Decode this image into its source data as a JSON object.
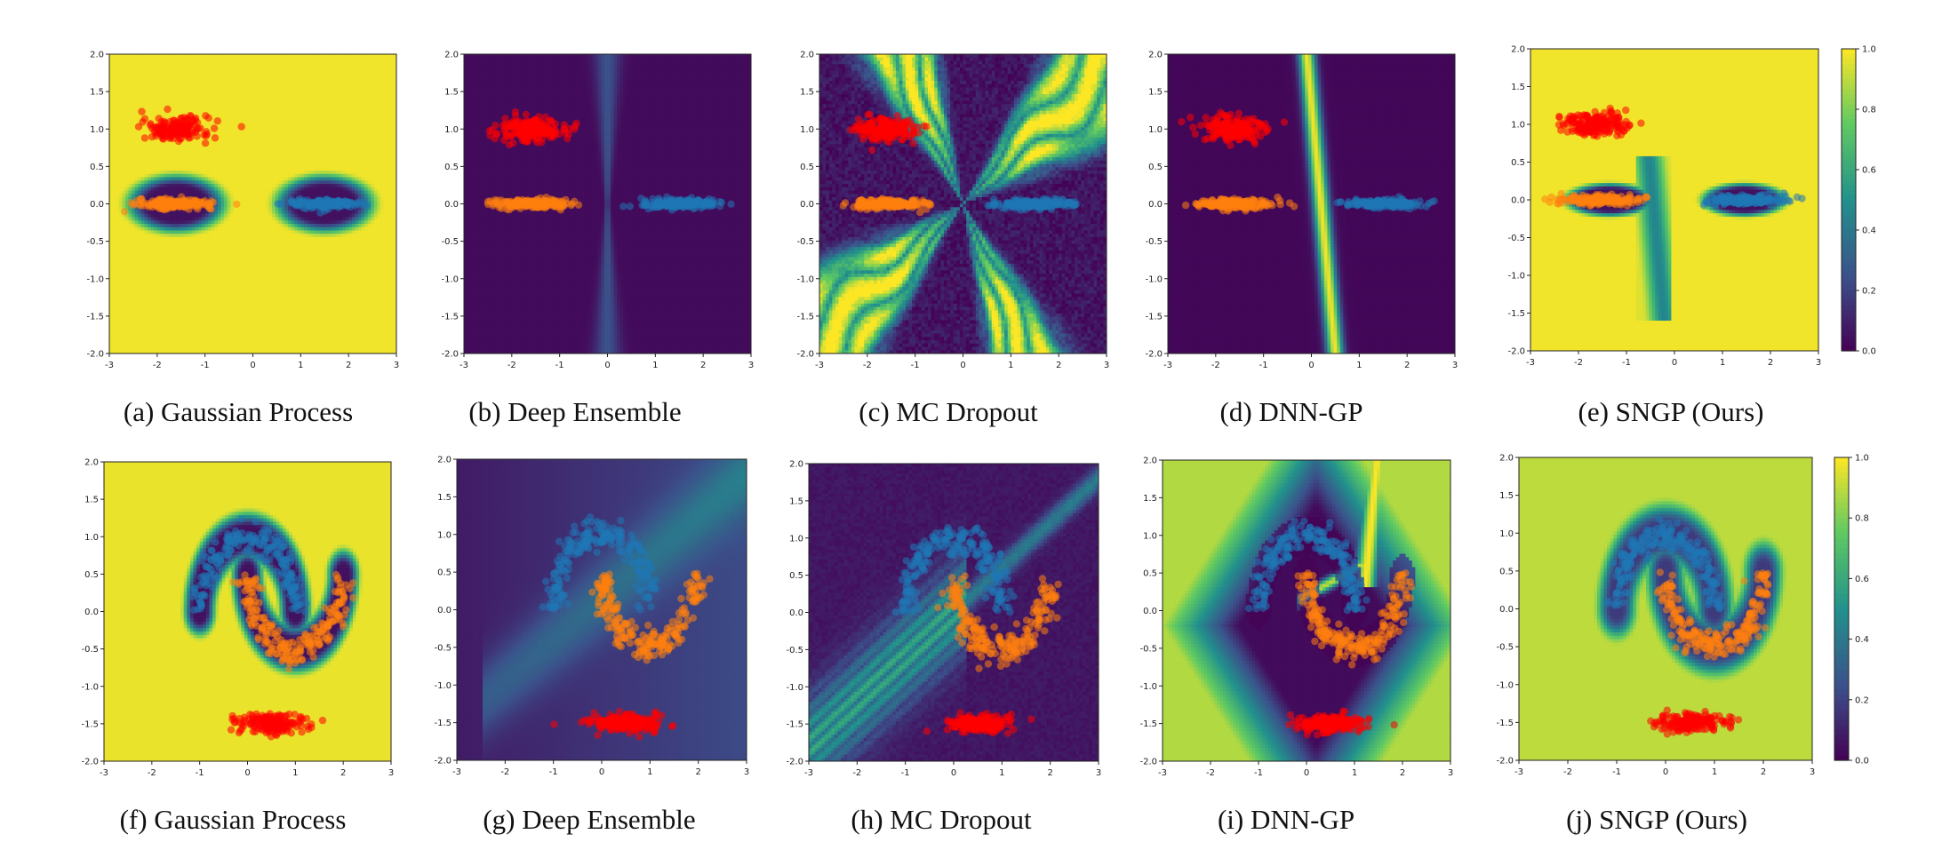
{
  "figure": {
    "colorbar_ticks": [
      "0.0",
      "0.2",
      "0.4",
      "0.6",
      "0.8",
      "1.0"
    ],
    "colormap": "viridis",
    "colors": {
      "high_uncertainty": "#e6e419",
      "low_uncertainty": "#440154",
      "class_orange": "#ff7f0e",
      "class_blue": "#1f77b4",
      "ood_red": "#ff0000"
    }
  },
  "chart_data": [
    {
      "id": "a",
      "type": "heatmap",
      "caption": "(a) Gaussian Process",
      "dataset": "gaussian-clusters",
      "method": "gp",
      "xlim": [
        -3,
        3
      ],
      "ylim": [
        -2,
        2
      ],
      "xticks": [
        "-3",
        "-2",
        "-1",
        "0",
        "1",
        "2",
        "3"
      ],
      "yticks": [
        "2.0",
        "1.5",
        "1.0",
        "0.5",
        "0.0",
        "-0.5",
        "-1.0",
        "-1.5",
        "-2.0"
      ],
      "clusters": [
        {
          "color": "ood_red",
          "cx": -1.6,
          "cy": 1.0,
          "sx": 0.35,
          "sy": 0.08
        },
        {
          "color": "class_orange",
          "cx": -1.6,
          "cy": 0.0,
          "sx": 0.4,
          "sy": 0.03
        },
        {
          "color": "class_blue",
          "cx": 1.5,
          "cy": 0.0,
          "sx": 0.4,
          "sy": 0.03
        }
      ]
    },
    {
      "id": "b",
      "type": "heatmap",
      "caption": "(b) Deep Ensemble",
      "dataset": "gaussian-clusters",
      "method": "ensemble",
      "xlim": [
        -3,
        3
      ],
      "ylim": [
        -2,
        2
      ],
      "xticks": [
        "-3",
        "-2",
        "-1",
        "0",
        "1",
        "2",
        "3"
      ],
      "yticks": [
        "2.0",
        "1.5",
        "1.0",
        "0.5",
        "0.0",
        "-0.5",
        "-1.0",
        "-1.5",
        "-2.0"
      ],
      "clusters": [
        {
          "color": "ood_red",
          "cx": -1.6,
          "cy": 1.0,
          "sx": 0.35,
          "sy": 0.08
        },
        {
          "color": "class_orange",
          "cx": -1.6,
          "cy": 0.0,
          "sx": 0.4,
          "sy": 0.03
        },
        {
          "color": "class_blue",
          "cx": 1.5,
          "cy": 0.0,
          "sx": 0.4,
          "sy": 0.03
        }
      ]
    },
    {
      "id": "c",
      "type": "heatmap",
      "caption": "(c) MC Dropout",
      "dataset": "gaussian-clusters",
      "method": "dropout",
      "xlim": [
        -3,
        3
      ],
      "ylim": [
        -2,
        2
      ],
      "xticks": [
        "-3",
        "-2",
        "-1",
        "0",
        "1",
        "2",
        "3"
      ],
      "yticks": [
        "2.0",
        "1.5",
        "1.0",
        "0.5",
        "0.0",
        "-0.5",
        "-1.0",
        "-1.5",
        "-2.0"
      ],
      "clusters": [
        {
          "color": "ood_red",
          "cx": -1.6,
          "cy": 1.0,
          "sx": 0.35,
          "sy": 0.08
        },
        {
          "color": "class_orange",
          "cx": -1.6,
          "cy": 0.0,
          "sx": 0.4,
          "sy": 0.03
        },
        {
          "color": "class_blue",
          "cx": 1.5,
          "cy": 0.0,
          "sx": 0.4,
          "sy": 0.03
        }
      ]
    },
    {
      "id": "d",
      "type": "heatmap",
      "caption": "(d) DNN-GP",
      "dataset": "gaussian-clusters",
      "method": "dnngp",
      "xlim": [
        -3,
        3
      ],
      "ylim": [
        -2,
        2
      ],
      "xticks": [
        "-3",
        "-2",
        "-1",
        "0",
        "1",
        "2",
        "3"
      ],
      "yticks": [
        "2.0",
        "1.5",
        "1.0",
        "0.5",
        "0.0",
        "-0.5",
        "-1.0",
        "-1.5",
        "-2.0"
      ],
      "clusters": [
        {
          "color": "ood_red",
          "cx": -1.6,
          "cy": 1.0,
          "sx": 0.35,
          "sy": 0.08
        },
        {
          "color": "class_orange",
          "cx": -1.6,
          "cy": 0.0,
          "sx": 0.4,
          "sy": 0.03
        },
        {
          "color": "class_blue",
          "cx": 1.5,
          "cy": 0.0,
          "sx": 0.4,
          "sy": 0.03
        }
      ]
    },
    {
      "id": "e",
      "type": "heatmap",
      "caption": "(e) SNGP (Ours)",
      "dataset": "gaussian-clusters",
      "method": "sngp",
      "colorbar": true,
      "xlim": [
        -3,
        3
      ],
      "ylim": [
        -2,
        2
      ],
      "xticks": [
        "-3",
        "-2",
        "-1",
        "0",
        "1",
        "2",
        "3"
      ],
      "yticks": [
        "2.0",
        "1.5",
        "1.0",
        "0.5",
        "0.0",
        "-0.5",
        "-1.0",
        "-1.5",
        "-2.0"
      ],
      "clusters": [
        {
          "color": "ood_red",
          "cx": -1.6,
          "cy": 1.0,
          "sx": 0.35,
          "sy": 0.08
        },
        {
          "color": "class_orange",
          "cx": -1.6,
          "cy": 0.0,
          "sx": 0.4,
          "sy": 0.03
        },
        {
          "color": "class_blue",
          "cx": 1.5,
          "cy": 0.0,
          "sx": 0.4,
          "sy": 0.03
        }
      ]
    },
    {
      "id": "f",
      "type": "heatmap",
      "caption": "(f) Gaussian Process",
      "dataset": "two-moons",
      "method": "gp",
      "xlim": [
        -3,
        3
      ],
      "ylim": [
        -2,
        2
      ],
      "xticks": [
        "-3",
        "-2",
        "-1",
        "0",
        "1",
        "2",
        "3"
      ],
      "yticks": [
        "2.0",
        "1.5",
        "1.0",
        "0.5",
        "0.0",
        "-0.5",
        "-1.0",
        "-1.5",
        "-2.0"
      ],
      "clusters": [
        {
          "color": "ood_red",
          "cx": 0.5,
          "cy": -1.5,
          "sx": 0.35,
          "sy": 0.06
        }
      ],
      "moons": [
        {
          "color": "class_blue",
          "cx": 0,
          "cy": 0,
          "r": 1,
          "from": 0,
          "to": 180
        },
        {
          "color": "class_orange",
          "cx": 1,
          "cy": 0.5,
          "r": 1,
          "from": 180,
          "to": 360
        }
      ]
    },
    {
      "id": "g",
      "type": "heatmap",
      "caption": "(g) Deep Ensemble",
      "dataset": "two-moons",
      "method": "ensemble",
      "xlim": [
        -3,
        3
      ],
      "ylim": [
        -2,
        2
      ],
      "xticks": [
        "-3",
        "-2",
        "-1",
        "0",
        "1",
        "2",
        "3"
      ],
      "yticks": [
        "2.0",
        "1.5",
        "1.0",
        "0.5",
        "0.0",
        "-0.5",
        "-1.0",
        "-1.5",
        "-2.0"
      ],
      "clusters": [
        {
          "color": "ood_red",
          "cx": 0.5,
          "cy": -1.5,
          "sx": 0.35,
          "sy": 0.06
        }
      ],
      "moons": [
        {
          "color": "class_blue",
          "cx": 0,
          "cy": 0,
          "r": 1,
          "from": 0,
          "to": 180
        },
        {
          "color": "class_orange",
          "cx": 1,
          "cy": 0.5,
          "r": 1,
          "from": 180,
          "to": 360
        }
      ]
    },
    {
      "id": "h",
      "type": "heatmap",
      "caption": "(h) MC Dropout",
      "dataset": "two-moons",
      "method": "dropout",
      "xlim": [
        -3,
        3
      ],
      "ylim": [
        -2,
        2
      ],
      "xticks": [
        "-3",
        "-2",
        "-1",
        "0",
        "1",
        "2",
        "3"
      ],
      "yticks": [
        "2.0",
        "1.5",
        "1.0",
        "0.5",
        "0.0",
        "-0.5",
        "-1.0",
        "-1.5",
        "-2.0"
      ],
      "clusters": [
        {
          "color": "ood_red",
          "cx": 0.5,
          "cy": -1.5,
          "sx": 0.35,
          "sy": 0.06
        }
      ],
      "moons": [
        {
          "color": "class_blue",
          "cx": 0,
          "cy": 0,
          "r": 1,
          "from": 0,
          "to": 180
        },
        {
          "color": "class_orange",
          "cx": 1,
          "cy": 0.5,
          "r": 1,
          "from": 180,
          "to": 360
        }
      ]
    },
    {
      "id": "i",
      "type": "heatmap",
      "caption": "(i) DNN-GP",
      "dataset": "two-moons",
      "method": "dnngp",
      "xlim": [
        -3,
        3
      ],
      "ylim": [
        -2,
        2
      ],
      "xticks": [
        "-3",
        "-2",
        "-1",
        "0",
        "1",
        "2",
        "3"
      ],
      "yticks": [
        "2.0",
        "1.5",
        "1.0",
        "0.5",
        "0.0",
        "-0.5",
        "-1.0",
        "-1.5",
        "-2.0"
      ],
      "clusters": [
        {
          "color": "ood_red",
          "cx": 0.5,
          "cy": -1.5,
          "sx": 0.35,
          "sy": 0.06
        }
      ],
      "moons": [
        {
          "color": "class_blue",
          "cx": 0,
          "cy": 0,
          "r": 1,
          "from": 0,
          "to": 180
        },
        {
          "color": "class_orange",
          "cx": 1,
          "cy": 0.5,
          "r": 1,
          "from": 180,
          "to": 360
        }
      ]
    },
    {
      "id": "j",
      "type": "heatmap",
      "caption": "(j) SNGP (Ours)",
      "dataset": "two-moons",
      "method": "sngp",
      "colorbar": true,
      "xlim": [
        -3,
        3
      ],
      "ylim": [
        -2,
        2
      ],
      "xticks": [
        "-3",
        "-2",
        "-1",
        "0",
        "1",
        "2",
        "3"
      ],
      "yticks": [
        "2.0",
        "1.5",
        "1.0",
        "0.5",
        "0.0",
        "-0.5",
        "-1.0",
        "-1.5",
        "-2.0"
      ],
      "clusters": [
        {
          "color": "ood_red",
          "cx": 0.5,
          "cy": -1.5,
          "sx": 0.35,
          "sy": 0.06
        }
      ],
      "moons": [
        {
          "color": "class_blue",
          "cx": 0,
          "cy": 0,
          "r": 1,
          "from": 0,
          "to": 180
        },
        {
          "color": "class_orange",
          "cx": 1,
          "cy": 0.5,
          "r": 1,
          "from": 180,
          "to": 360
        }
      ]
    }
  ]
}
